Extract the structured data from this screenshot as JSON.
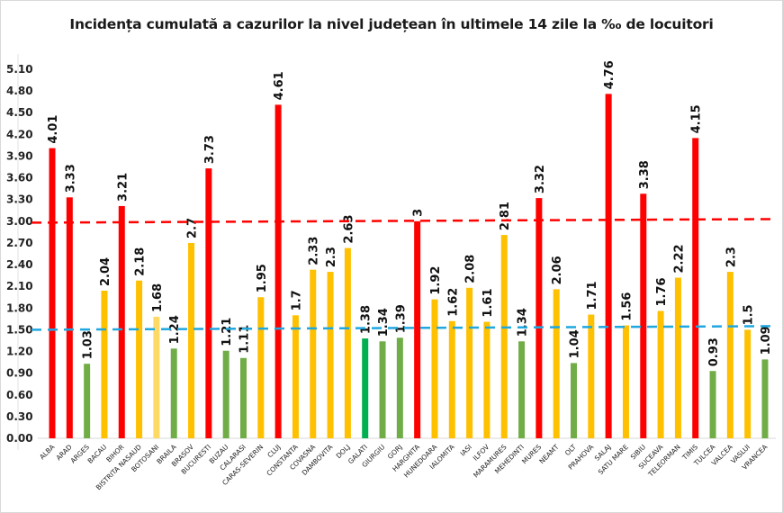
{
  "chart_data": {
    "type": "bar",
    "title": "Incidența cumulată a cazurilor la nivel județean în ultimele 14 zile la ‰ de locuitori",
    "xlabel": "",
    "ylabel": "",
    "ylim": [
      0,
      5.1
    ],
    "yticks": [
      "0.00",
      "0.30",
      "0.60",
      "0.90",
      "1.20",
      "1.50",
      "1.80",
      "2.10",
      "2.40",
      "2.70",
      "3.00",
      "3.30",
      "3.60",
      "3.90",
      "4.20",
      "4.50",
      "4.80",
      "5.10"
    ],
    "grid": false,
    "legend": "none",
    "categories": [
      "ALBA",
      "ARAD",
      "ARGES",
      "BACAU",
      "BIHOR",
      "BISTRITA NASAUD",
      "BOTOSANI",
      "BRAILA",
      "BRASOV",
      "BUCURESTI",
      "BUZAU",
      "CALARASI",
      "CARAS-SEVERIN",
      "CLUJ",
      "CONSTANTA",
      "COVASNA",
      "DAMBOVITA",
      "DOLJ",
      "GALATI",
      "GIURGIU",
      "GORJ",
      "HARGHITA",
      "HUNEDOARA",
      "IALOMITA",
      "IASI",
      "ILFOV",
      "MARAMURES",
      "MEHEDINTI",
      "MURES",
      "NEAMT",
      "OLT",
      "PRAHOVA",
      "SALAJ",
      "SATU MARE",
      "SIBIU",
      "SUCEAVA",
      "TELEORMAN",
      "TIMIS",
      "TULCEA",
      "VALCEA",
      "VASLUI",
      "VRANCEA"
    ],
    "values": [
      4.01,
      3.33,
      1.03,
      2.04,
      3.21,
      2.18,
      1.68,
      1.24,
      2.7,
      3.73,
      1.21,
      1.11,
      1.95,
      4.61,
      1.7,
      2.33,
      2.3,
      2.63,
      1.38,
      1.34,
      1.39,
      3,
      1.92,
      1.62,
      2.08,
      1.61,
      2.81,
      1.34,
      3.32,
      2.06,
      1.04,
      1.71,
      4.76,
      1.56,
      3.38,
      1.76,
      2.22,
      4.15,
      0.93,
      2.3,
      1.5,
      1.09
    ],
    "data_labels": [
      "4.01",
      "3.33",
      "1.03",
      "2.04",
      "3.21",
      "2.18",
      "1.68",
      "1.24",
      "2.7",
      "3.73",
      "1.21",
      "1.11",
      "1.95",
      "4.61",
      "1.7",
      "2.33",
      "2.3",
      "2.63",
      "1.38",
      "1.34",
      "1.39",
      "3",
      "1.92",
      "1.62",
      "2.08",
      "1.61",
      "2.81",
      "1.34",
      "3.32",
      "2.06",
      "1.04",
      "1.71",
      "4.76",
      "1.56",
      "3.38",
      "1.76",
      "2.22",
      "4.15",
      "0.93",
      "2.3",
      "1.5",
      "1.09"
    ],
    "bar_colors": [
      "#ff0000",
      "#ff0000",
      "#70ad47",
      "#ffc000",
      "#ff0000",
      "#ffc000",
      "#ffd966",
      "#70ad47",
      "#ffc000",
      "#ff0000",
      "#70ad47",
      "#70ad47",
      "#ffc000",
      "#ff0000",
      "#ffc000",
      "#ffc000",
      "#ffc000",
      "#ffc000",
      "#00b050",
      "#70ad47",
      "#70ad47",
      "#ff0000",
      "#ffc000",
      "#ffc000",
      "#ffc000",
      "#ffc000",
      "#ffc000",
      "#70ad47",
      "#ff0000",
      "#ffc000",
      "#70ad47",
      "#ffc000",
      "#ff0000",
      "#ffc000",
      "#ff0000",
      "#ffc000",
      "#ffc000",
      "#ff0000",
      "#70ad47",
      "#ffc000",
      "#ffc000",
      "#70ad47"
    ],
    "reference_lines": [
      {
        "style": "dashed",
        "color": "#ff0000",
        "y_start": 2.98,
        "y_end": 3.03
      },
      {
        "style": "dashed",
        "color": "#1fa7e0",
        "y_start": 1.5,
        "y_end": 1.55
      }
    ]
  }
}
